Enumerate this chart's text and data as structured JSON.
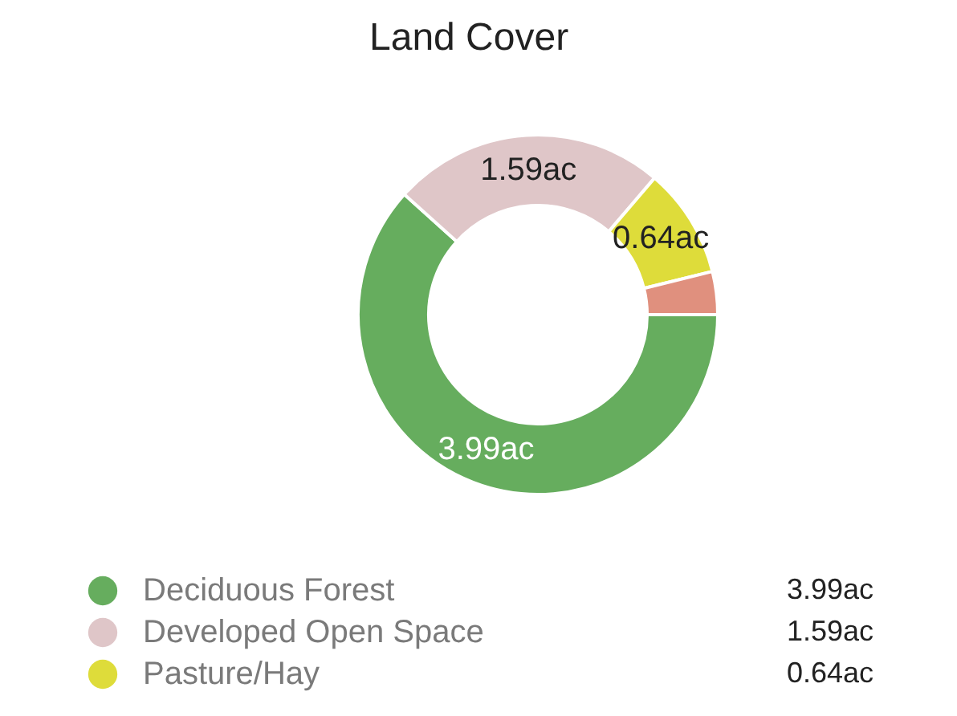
{
  "chart_data": {
    "type": "donut",
    "title": "Land Cover",
    "categories": [
      "Deciduous Forest",
      "Developed Open Space",
      "Pasture/Hay",
      null
    ],
    "values": [
      3.99,
      1.59,
      0.64,
      0.25
    ],
    "colors": [
      "#66ad5e",
      "#dfc6c8",
      "#dedc3a",
      "#e0907e"
    ],
    "value_labels": [
      "3.99ac",
      "1.59ac",
      "0.64ac",
      null
    ],
    "legend": "bottom"
  }
}
